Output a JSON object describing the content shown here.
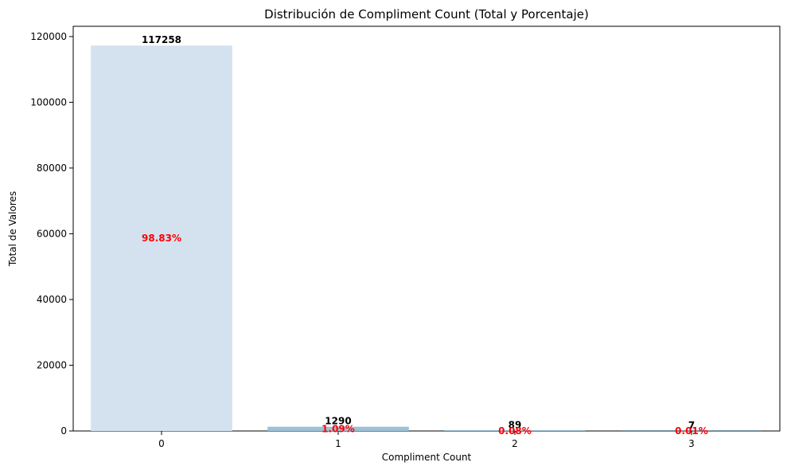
{
  "chart_data": {
    "type": "bar",
    "title": "Distribución de Compliment Count (Total y Porcentaje)",
    "xlabel": "Compliment Count",
    "ylabel": "Total de Valores",
    "categories": [
      "0",
      "1",
      "2",
      "3"
    ],
    "values": [
      117258,
      1290,
      89,
      7
    ],
    "value_labels": [
      "117258",
      "1290",
      "89",
      "7"
    ],
    "percent_labels": [
      "98.83%",
      "1.09%",
      "0.08%",
      "0.01%"
    ],
    "bar_colors": [
      "#d4e2f0",
      "#9dc1d7",
      "#4c8aac",
      "#1f4f6e"
    ],
    "percent_color": "#ff0000",
    "ylim": [
      0,
      123121
    ],
    "yticks": [
      0,
      20000,
      40000,
      60000,
      80000,
      100000,
      120000
    ],
    "ytick_labels": [
      "0",
      "20000",
      "40000",
      "60000",
      "80000",
      "100000",
      "120000"
    ],
    "grid": false,
    "legend": "none"
  }
}
